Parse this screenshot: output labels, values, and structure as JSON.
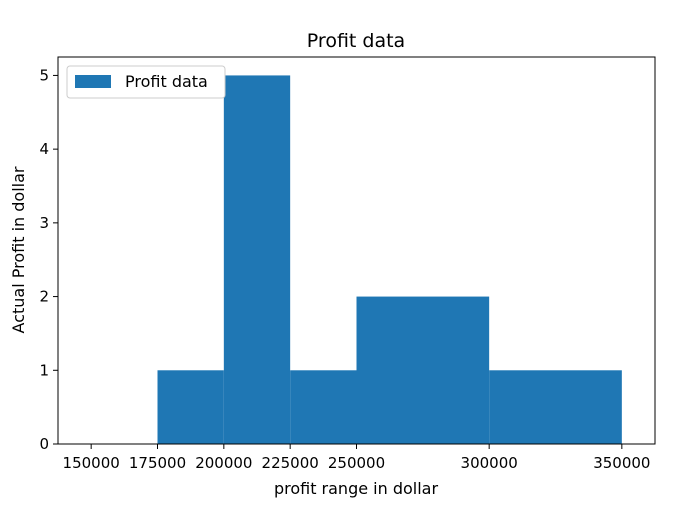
{
  "chart_data": {
    "type": "bar",
    "title": "Profit data",
    "xlabel": "profit range in dollar",
    "ylabel": "Actual Profit in dollar",
    "legend": {
      "label": "Profit data",
      "placement": "top-left"
    },
    "xlim": [
      137500,
      362500
    ],
    "ylim": [
      0,
      5.25
    ],
    "x_ticks": [
      150000,
      175000,
      200000,
      225000,
      250000,
      300000,
      350000
    ],
    "x_tick_labels": [
      "150000",
      "175000",
      "200000",
      "225000",
      "250000",
      "300000",
      "350000"
    ],
    "y_ticks": [
      0,
      1,
      2,
      3,
      4,
      5
    ],
    "y_tick_labels": [
      "0",
      "1",
      "2",
      "3",
      "4",
      "5"
    ],
    "bins": [
      {
        "x0": 175000,
        "x1": 200000,
        "value": 1
      },
      {
        "x0": 200000,
        "x1": 225000,
        "value": 5
      },
      {
        "x0": 225000,
        "x1": 250000,
        "value": 1
      },
      {
        "x0": 250000,
        "x1": 300000,
        "value": 2
      },
      {
        "x0": 300000,
        "x1": 350000,
        "value": 1
      }
    ],
    "color": "#1f77b4",
    "grid": false
  }
}
